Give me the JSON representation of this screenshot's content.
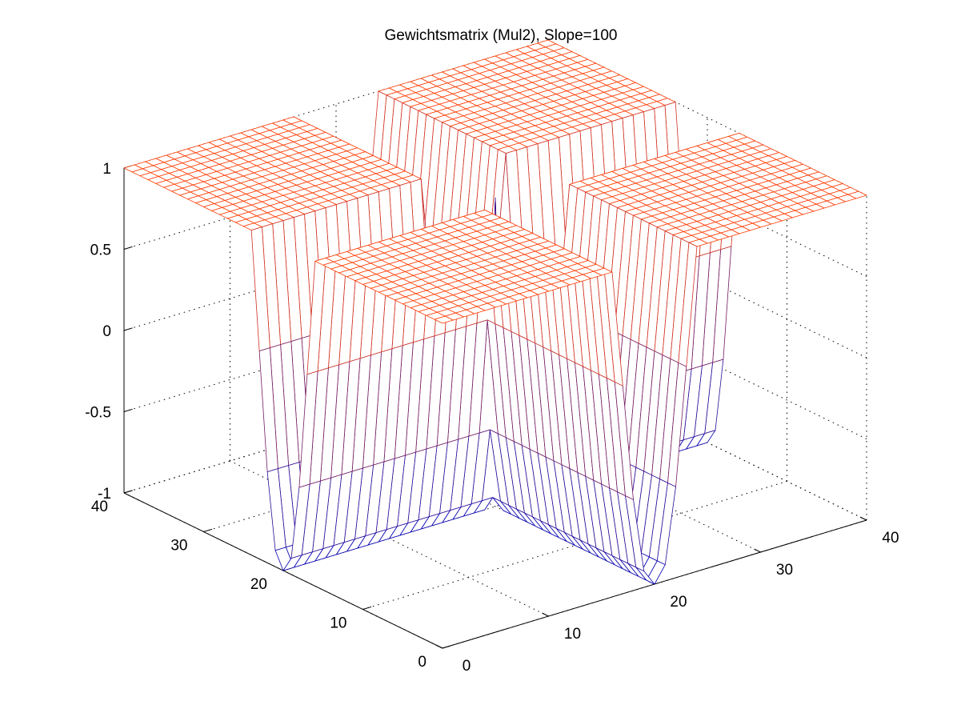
{
  "chart_data": {
    "type": "surface",
    "title": "Gewichtsmatrix (Mul2), Slope=100",
    "xlabel": "",
    "ylabel": "",
    "zlabel": "",
    "xlim": [
      0,
      40
    ],
    "ylim": [
      0,
      40
    ],
    "zlim": [
      -1,
      1
    ],
    "x_ticks": [
      "0",
      "10",
      "20",
      "30",
      "40"
    ],
    "y_ticks": [
      "0",
      "10",
      "20",
      "30",
      "40"
    ],
    "z_ticks": [
      "-1",
      "-0.5",
      "0",
      "0.5",
      "1"
    ],
    "x_tick_values": [
      0,
      10,
      20,
      30,
      40
    ],
    "y_tick_values": [
      0,
      10,
      20,
      30,
      40
    ],
    "z_tick_values": [
      -1,
      -0.5,
      0,
      0.5,
      1
    ],
    "grid": true,
    "grid_count": 40,
    "surface": {
      "description_free": true,
      "quadrant_plateau_value": 1,
      "gap_center": 20,
      "gap_halfwidth": 1.5,
      "gap_min_value": -1
    },
    "colors": {
      "low": "#0000b4",
      "high": "#ff3a00"
    }
  }
}
